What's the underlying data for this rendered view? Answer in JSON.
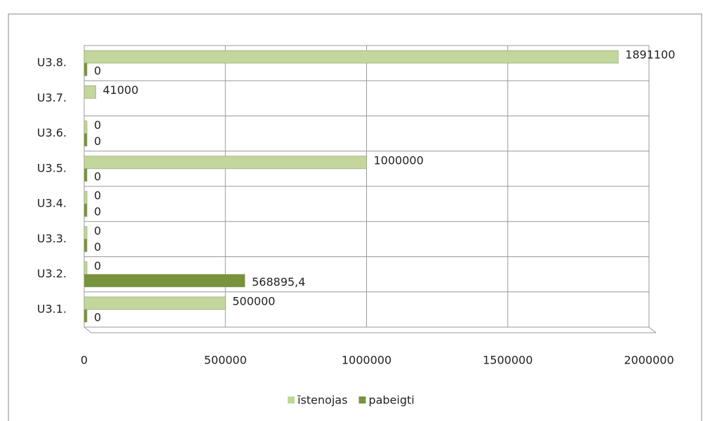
{
  "chart_data": {
    "type": "barh",
    "categories": [
      "U3.1.",
      "U3.2.",
      "U3.3.",
      "U3.4.",
      "U3.5.",
      "U3.6.",
      "U3.7.",
      "U3.8."
    ],
    "series": [
      {
        "name": "īstenojas",
        "color": "#c3d69b",
        "values": [
          500000,
          0,
          0,
          0,
          1000000,
          0,
          41000,
          1891100
        ]
      },
      {
        "name": "pabeigti",
        "color": "#77933c",
        "values": [
          0,
          568895.4,
          0,
          0,
          0,
          0,
          null,
          0
        ],
        "value_labels": [
          "0",
          "568895,4",
          "0",
          "0",
          "0",
          "0",
          null,
          "0"
        ]
      }
    ],
    "xlim": [
      0,
      2000000
    ],
    "xticks": [
      0,
      500000,
      1000000,
      1500000,
      2000000
    ],
    "grid": true,
    "legend": "bottom"
  }
}
